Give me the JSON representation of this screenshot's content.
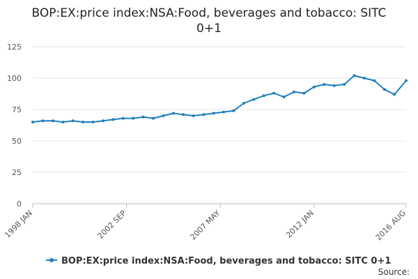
{
  "chart_data": {
    "type": "line",
    "title_lines": [
      "BOP:EX:price index:NSA:Food, beverages and tobacco: SITC",
      "0+1"
    ],
    "source_label": "Source:",
    "color": "#1f7fbd",
    "ylim": [
      0,
      125
    ],
    "y_ticks": [
      0,
      25,
      50,
      75,
      100,
      125
    ],
    "x_range": [
      "1998 JAN",
      "2016 AUG"
    ],
    "x_ticks": [
      "1998 JAN",
      "2002 SEP",
      "2007 MAY",
      "2012 JAN",
      "2016 AUG"
    ],
    "grid": true,
    "legend_position": "bottom",
    "series": [
      {
        "name": "BOP:EX:price index:NSA:Food, beverages and tobacco: SITC 0+1",
        "points": [
          [
            "1998 JAN",
            65
          ],
          [
            "1998 JUL",
            66
          ],
          [
            "1999 JAN",
            66
          ],
          [
            "1999 JUL",
            65
          ],
          [
            "2000 JAN",
            66
          ],
          [
            "2000 JUL",
            65
          ],
          [
            "2001 JAN",
            65
          ],
          [
            "2001 JUL",
            66
          ],
          [
            "2002 JAN",
            67
          ],
          [
            "2002 JUL",
            68
          ],
          [
            "2003 JAN",
            68
          ],
          [
            "2003 JUL",
            69
          ],
          [
            "2004 JAN",
            68
          ],
          [
            "2004 JUL",
            70
          ],
          [
            "2005 JAN",
            72
          ],
          [
            "2005 JUL",
            71
          ],
          [
            "2006 JAN",
            70
          ],
          [
            "2006 JUL",
            71
          ],
          [
            "2007 JAN",
            72
          ],
          [
            "2007 JUL",
            73
          ],
          [
            "2008 JAN",
            74
          ],
          [
            "2008 JUL",
            80
          ],
          [
            "2009 JAN",
            83
          ],
          [
            "2009 JUL",
            86
          ],
          [
            "2010 JAN",
            88
          ],
          [
            "2010 JUL",
            85
          ],
          [
            "2011 JAN",
            89
          ],
          [
            "2011 JUL",
            88
          ],
          [
            "2012 JAN",
            93
          ],
          [
            "2012 JUL",
            95
          ],
          [
            "2013 JAN",
            94
          ],
          [
            "2013 JUL",
            95
          ],
          [
            "2014 JAN",
            102
          ],
          [
            "2014 JUL",
            100
          ],
          [
            "2015 JAN",
            98
          ],
          [
            "2015 JUL",
            91
          ],
          [
            "2016 JAN",
            87
          ],
          [
            "2016 AUG",
            98
          ]
        ]
      }
    ]
  }
}
